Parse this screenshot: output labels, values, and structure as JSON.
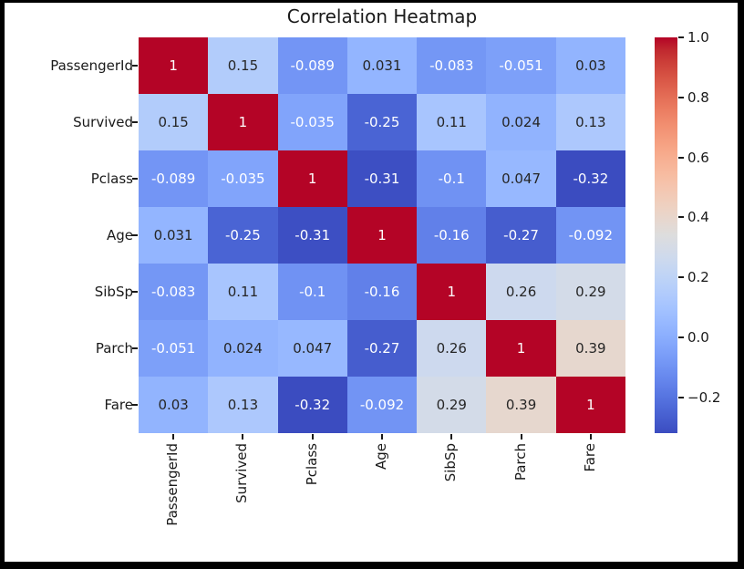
{
  "window": {
    "frame_color": "#000000",
    "canvas_color": "#ffffff"
  },
  "chart_data": {
    "type": "heatmap",
    "title": "Correlation Heatmap",
    "labels": [
      "PassengerId",
      "Survived",
      "Pclass",
      "Age",
      "SibSp",
      "Parch",
      "Fare"
    ],
    "matrix": [
      [
        1,
        0.15,
        -0.089,
        0.031,
        -0.083,
        -0.051,
        0.03
      ],
      [
        0.15,
        1,
        -0.035,
        -0.25,
        0.11,
        0.024,
        0.13
      ],
      [
        -0.089,
        -0.035,
        1,
        -0.31,
        -0.1,
        0.047,
        -0.32
      ],
      [
        0.031,
        -0.25,
        -0.31,
        1,
        -0.16,
        -0.27,
        -0.092
      ],
      [
        -0.083,
        0.11,
        -0.1,
        -0.16,
        1,
        0.26,
        0.29
      ],
      [
        -0.051,
        0.024,
        0.047,
        -0.27,
        0.26,
        1,
        0.39
      ],
      [
        0.03,
        0.13,
        -0.32,
        -0.092,
        0.29,
        0.39,
        1
      ]
    ],
    "vmin": -0.32,
    "vmax": 1.0,
    "colormap": "coolwarm",
    "colormap_low": "#3b4cc0",
    "colormap_mid": "#dddddd",
    "colormap_high": "#b40426",
    "annotation_colors": {
      "dark": "#262626",
      "light": "#ffffff"
    },
    "colorbar": {
      "position": "right",
      "tick_labels": [
        "1.0",
        "0.8",
        "0.6",
        "0.4",
        "0.2",
        "0.0",
        "−0.2"
      ],
      "tick_values": [
        1.0,
        0.8,
        0.6,
        0.4,
        0.2,
        0.0,
        -0.2
      ]
    },
    "grid_lines": false,
    "x_tick_rotation": 90
  }
}
